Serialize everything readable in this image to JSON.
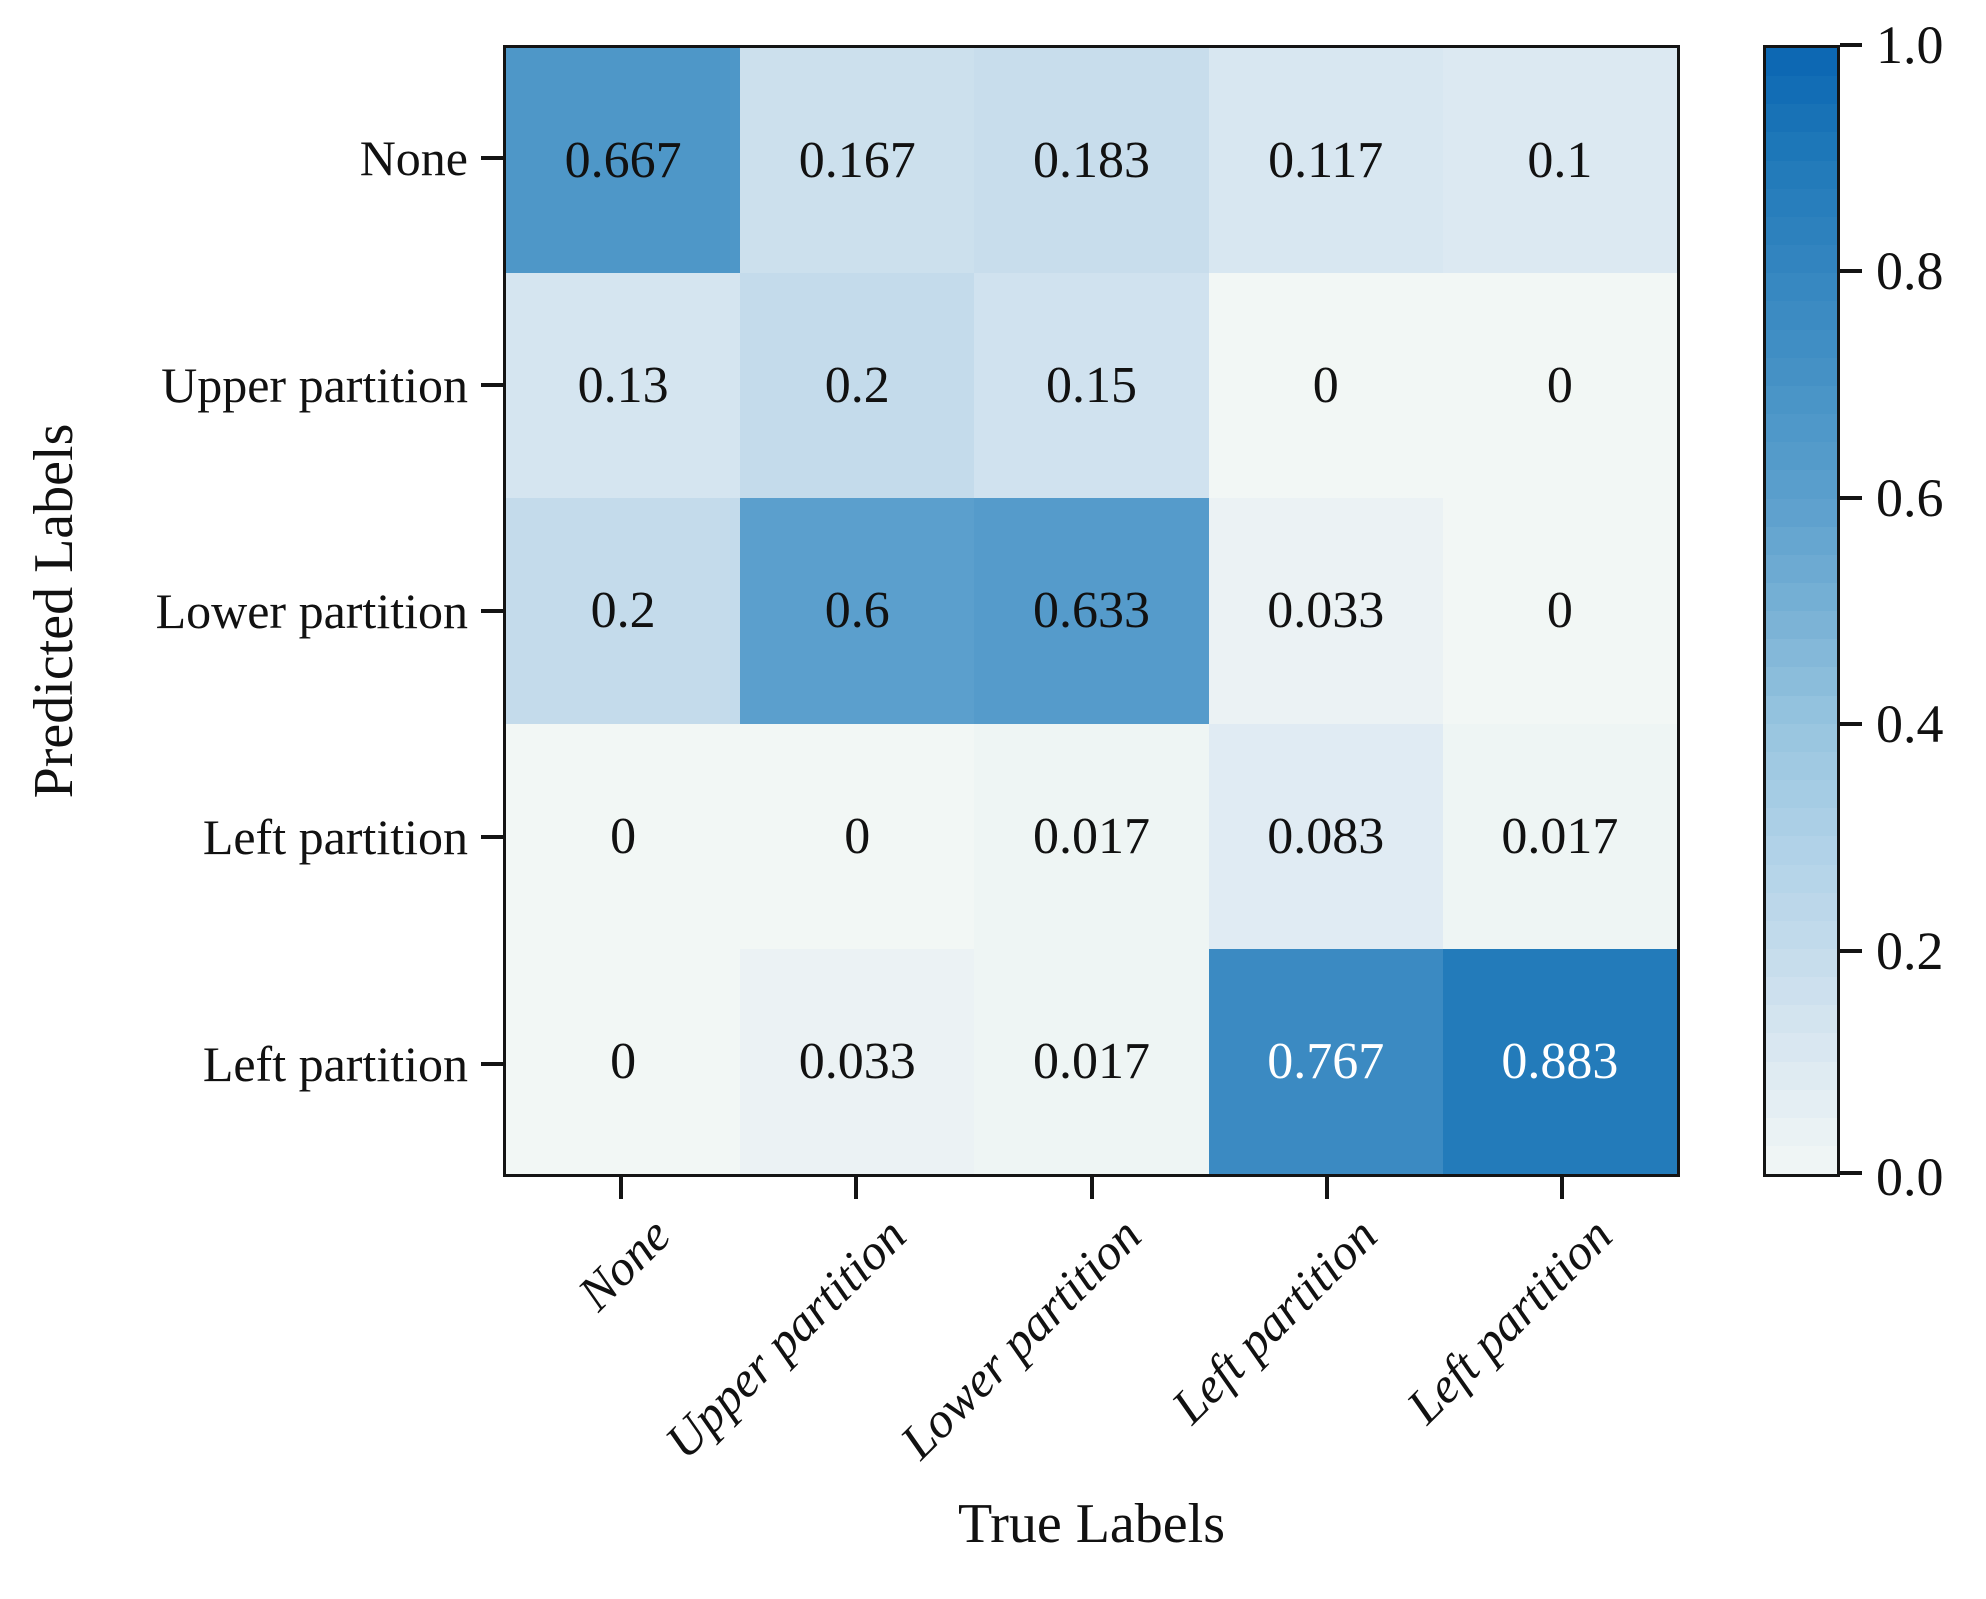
{
  "chart_data": {
    "type": "heatmap",
    "title": "",
    "xlabel": "True Labels",
    "ylabel": "Predicted Labels",
    "x_categories": [
      "None",
      "Upper partition",
      "Lower partition",
      "Left partition",
      "Left partition"
    ],
    "y_categories": [
      "None",
      "Upper partition",
      "Lower partition",
      "Left partition",
      "Left partition"
    ],
    "values": [
      [
        0.667,
        0.167,
        0.183,
        0.117,
        0.1
      ],
      [
        0.13,
        0.2,
        0.15,
        0,
        0
      ],
      [
        0.2,
        0.6,
        0.633,
        0.033,
        0
      ],
      [
        0,
        0,
        0.017,
        0.083,
        0.017
      ],
      [
        0,
        0.033,
        0.017,
        0.767,
        0.883
      ]
    ],
    "cell_labels": [
      [
        "0.667",
        "0.167",
        "0.183",
        "0.117",
        "0.1"
      ],
      [
        "0.13",
        "0.2",
        "0.15",
        "0",
        "0"
      ],
      [
        "0.2",
        "0.6",
        "0.633",
        "0.033",
        "0"
      ],
      [
        "0",
        "0",
        "0.017",
        "0.083",
        "0.017"
      ],
      [
        "0",
        "0.033",
        "0.017",
        "0.767",
        "0.883"
      ]
    ],
    "colorbar": {
      "min": 0.0,
      "max": 1.0,
      "tick_labels": [
        "1.0",
        "0.8",
        "0.6",
        "0.4",
        "0.2",
        "0.0"
      ],
      "position": "right"
    },
    "colormap_stops": [
      [
        0.0,
        "#f2f7f5"
      ],
      [
        0.1,
        "#dce9f2"
      ],
      [
        0.2,
        "#c4dbeb"
      ],
      [
        0.3,
        "#aed1e7"
      ],
      [
        0.4,
        "#97c4df"
      ],
      [
        0.5,
        "#78b1d5"
      ],
      [
        0.6,
        "#5b9fcd"
      ],
      [
        0.7,
        "#4893c6"
      ],
      [
        0.8,
        "#3486c0"
      ],
      [
        0.9,
        "#2079b9"
      ],
      [
        1.0,
        "#0a66b2"
      ]
    ],
    "text_color_threshold": 0.7,
    "cell_text_color_dark": "#111111",
    "cell_text_color_light": "#ffffff",
    "grid": false,
    "legend": false
  }
}
